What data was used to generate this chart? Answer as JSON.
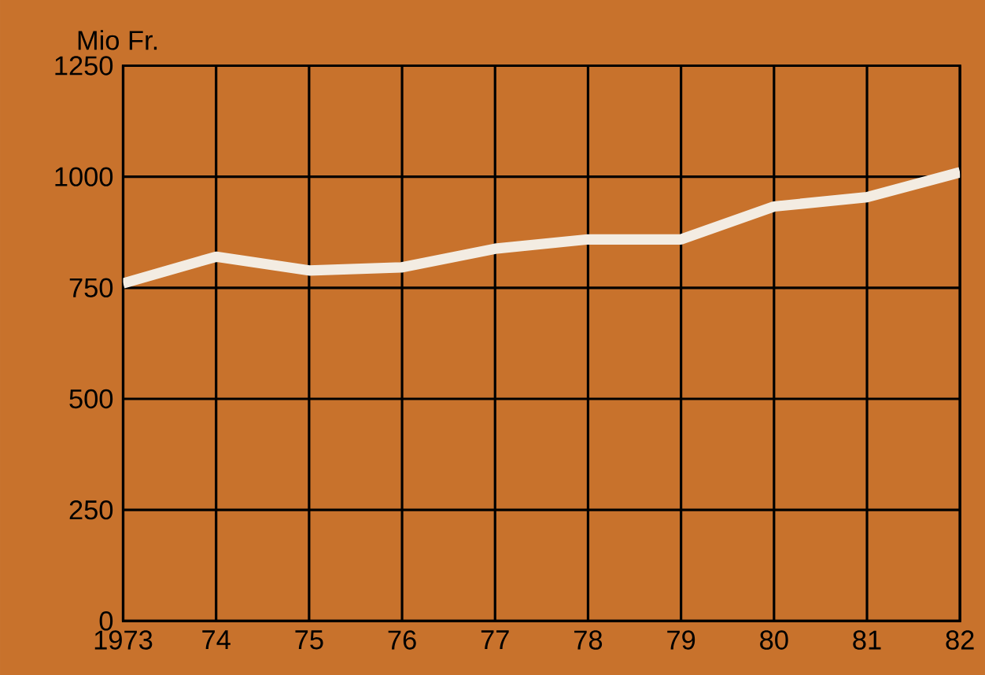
{
  "chart_data": {
    "type": "line",
    "ylabel": "Mio Fr.",
    "x": [
      1973,
      1974,
      1975,
      1976,
      1977,
      1978,
      1979,
      1980,
      1981,
      1982
    ],
    "series": [
      {
        "color": "#f3ece2",
        "values": [
          760,
          820,
          789,
          796,
          838,
          859,
          859,
          933,
          954,
          1010
        ]
      }
    ],
    "xlim": [
      1973,
      1982
    ],
    "ylim": [
      0,
      1250
    ],
    "xticks": [
      {
        "value": 1973,
        "label": "1973"
      },
      {
        "value": 1974,
        "label": "74"
      },
      {
        "value": 1975,
        "label": "75"
      },
      {
        "value": 1976,
        "label": "76"
      },
      {
        "value": 1977,
        "label": "77"
      },
      {
        "value": 1978,
        "label": "78"
      },
      {
        "value": 1979,
        "label": "79"
      },
      {
        "value": 1980,
        "label": "80"
      },
      {
        "value": 1981,
        "label": "81"
      },
      {
        "value": 1982,
        "label": "82"
      }
    ],
    "yticks": [
      0,
      250,
      500,
      750,
      1000,
      1250
    ],
    "grid": true
  }
}
